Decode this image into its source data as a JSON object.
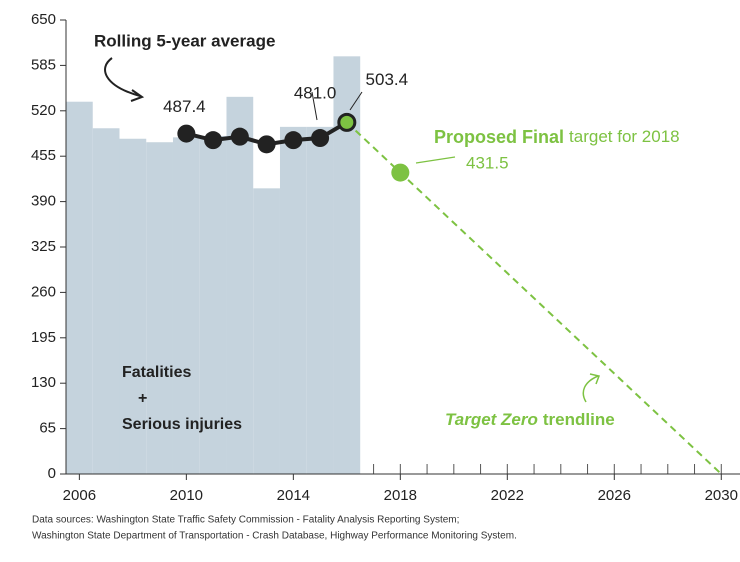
{
  "chart_data": {
    "type": "combo",
    "xlim": [
      2005.5,
      2030.7
    ],
    "xticks": [
      2006,
      2010,
      2014,
      2018,
      2022,
      2026,
      2030
    ],
    "xminorticks": [
      2006,
      2007,
      2008,
      2009,
      2010,
      2011,
      2012,
      2013,
      2014,
      2015,
      2016,
      2017,
      2018,
      2019,
      2020,
      2021,
      2022,
      2023,
      2024,
      2025,
      2026,
      2027,
      2028,
      2029,
      2030
    ],
    "ylim": [
      0,
      650
    ],
    "yticks": [
      0,
      65,
      130,
      195,
      260,
      325,
      390,
      455,
      520,
      585,
      650
    ],
    "grid": false,
    "series": [
      {
        "type": "bar",
        "color": "#c5d3dd",
        "x": [
          2006,
          2007,
          2008,
          2009,
          2010,
          2011,
          2012,
          2013,
          2014,
          2015,
          2016
        ],
        "values": [
          533,
          495,
          480,
          475,
          482,
          484,
          540,
          409,
          497,
          497,
          598
        ]
      },
      {
        "type": "line",
        "name": "Rolling 5-year average",
        "color": "#222222",
        "x": [
          2010,
          2011,
          2012,
          2013,
          2014,
          2015,
          2016
        ],
        "values": [
          487.4,
          478,
          483,
          472,
          478,
          481.0,
          503.4
        ],
        "value_labels": [
          "487.4",
          null,
          null,
          null,
          null,
          "481.0",
          "503.4"
        ]
      },
      {
        "type": "point",
        "name": "Proposed Final",
        "name_suffix": "target for 2018",
        "color": "#7dc242",
        "x": [
          2018
        ],
        "values": [
          431.5
        ],
        "value_labels": [
          "431.5"
        ]
      },
      {
        "type": "dashed",
        "name": "Target Zero",
        "name_suffix": "trendline",
        "color": "#7dc242",
        "x": [
          2016,
          2030
        ],
        "values": [
          503.4,
          0
        ]
      }
    ],
    "bar_label": [
      "Fatalities",
      "+",
      "Serious injuries"
    ],
    "sources": [
      "Data sources: Washington State Traffic Safety Commission - Fatality Analysis Reporting System;",
      "Washington State Department of Transportation - Crash Database, Highway Performance Monitoring System."
    ]
  }
}
